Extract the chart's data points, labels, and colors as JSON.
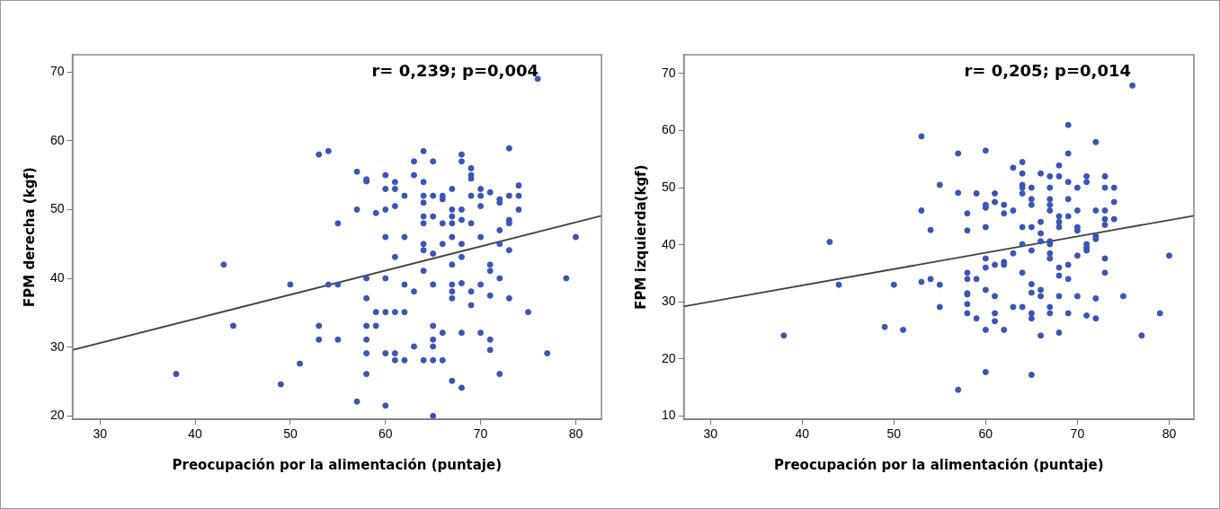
{
  "chart_data": [
    {
      "type": "scatter",
      "xlabel": "Preocupación por la alimentación (puntaje)",
      "ylabel": "FPM derecha (kgf)",
      "xlim": [
        27.1,
        82.7
      ],
      "ylim": [
        19.5,
        72.5
      ],
      "xticks": [
        30,
        40,
        50,
        60,
        70,
        80
      ],
      "yticks": [
        20,
        30,
        40,
        50,
        60,
        70
      ],
      "annotations": [
        "r= 0,239; p=0,004"
      ],
      "series": [
        {
          "marker": "circle",
          "color": "#3a55b4",
          "x": [
            53,
            54,
            57,
            58,
            58,
            57,
            55,
            43,
            50,
            54,
            55,
            58,
            58,
            44,
            53,
            53,
            55,
            58,
            58,
            58,
            58,
            51,
            38,
            49,
            57,
            59,
            59,
            59,
            60,
            60,
            60,
            60,
            60,
            60,
            60,
            60,
            61,
            61,
            61,
            61,
            61,
            61,
            61,
            62,
            62,
            62,
            62,
            62,
            63,
            63,
            63,
            63,
            64,
            64,
            64,
            64,
            64,
            64,
            64,
            64,
            64,
            64,
            65,
            65,
            65,
            65,
            65,
            65,
            65,
            65,
            65,
            65,
            66,
            66,
            66,
            66,
            66,
            66,
            67,
            67,
            67,
            67,
            67,
            67,
            67,
            67,
            67,
            67,
            68,
            68,
            68,
            68,
            68,
            68,
            68,
            68,
            68,
            69,
            69,
            69,
            69,
            69,
            69,
            69,
            70,
            70,
            70,
            70,
            70,
            70,
            71,
            71,
            71,
            71,
            71,
            71,
            72,
            72,
            72,
            72,
            72,
            72,
            73,
            73,
            73,
            73,
            73,
            73,
            74,
            74,
            74,
            75,
            76,
            77,
            79,
            80
          ],
          "values": [
            58.0,
            58.5,
            55.5,
            54.4,
            54.1,
            50.0,
            48.0,
            42.0,
            39.1,
            39.1,
            39.1,
            40.0,
            37.1,
            33.1,
            33.1,
            31.1,
            31.1,
            33.1,
            31.1,
            29.1,
            26.1,
            27.6,
            26.1,
            24.6,
            22.1,
            49.5,
            35.1,
            33.1,
            55.0,
            53.0,
            50.0,
            46.0,
            40.0,
            35.1,
            29.1,
            21.5,
            54.0,
            53.0,
            50.5,
            43.1,
            35.1,
            29.1,
            28.1,
            52.0,
            46.0,
            39.1,
            35.1,
            28.1,
            57.0,
            55.0,
            38.1,
            30.1,
            58.5,
            54.0,
            52.0,
            51.0,
            49.0,
            48.0,
            45.0,
            44.1,
            41.1,
            28.1,
            57.0,
            52.0,
            49.0,
            43.6,
            39.1,
            33.1,
            31.1,
            30.1,
            28.1,
            20.0,
            52.0,
            51.5,
            48.0,
            45.0,
            32.1,
            28.1,
            53.0,
            50.0,
            49.0,
            48.0,
            46.0,
            42.0,
            39.1,
            38.1,
            37.1,
            25.1,
            58.0,
            57.0,
            50.0,
            48.5,
            45.0,
            43.1,
            39.3,
            32.1,
            24.1,
            56.0,
            55.0,
            54.5,
            52.0,
            48.0,
            38.1,
            36.1,
            53.0,
            52.0,
            50.5,
            46.0,
            39.1,
            32.1,
            52.5,
            42.0,
            41.1,
            37.5,
            31.1,
            29.6,
            51.5,
            51.0,
            47.0,
            45.0,
            40.0,
            26.1,
            58.9,
            52.0,
            48.5,
            48.0,
            44.1,
            37.1,
            53.5,
            52.0,
            50.0,
            35.1,
            69.0,
            29.1,
            40.0,
            46.0
          ]
        },
        {
          "type": "line",
          "color": "#404040",
          "x": [
            27.1,
            82.7
          ],
          "values": [
            29.6,
            49.1
          ]
        }
      ]
    },
    {
      "type": "scatter",
      "xlabel": "Preocupación por la alimentación (puntaje)",
      "ylabel": "FPM izquierda(kgf)",
      "xlim": [
        27.1,
        82.7
      ],
      "ylim": [
        9.4,
        73.3
      ],
      "xticks": [
        30,
        40,
        50,
        60,
        70,
        80
      ],
      "yticks": [
        10,
        20,
        30,
        40,
        50,
        60,
        70
      ],
      "annotations": [
        "r= 0,205; p=0,014"
      ],
      "series": [
        {
          "marker": "circle",
          "color": "#3a55b4",
          "x": [
            38,
            43,
            44,
            49,
            50,
            51,
            53,
            53,
            53,
            54,
            54,
            55,
            55,
            55,
            57,
            57,
            57,
            58,
            58,
            58,
            58,
            58,
            58,
            58,
            58,
            59,
            59,
            59,
            60,
            60,
            60,
            60,
            60,
            60,
            60,
            60,
            60,
            61,
            61,
            61,
            61,
            61,
            61,
            62,
            62,
            62,
            62,
            62,
            63,
            63,
            63,
            63,
            64,
            64,
            64,
            64,
            64,
            64,
            64,
            64,
            64,
            65,
            65,
            65,
            65,
            65,
            65,
            65,
            65,
            65,
            65,
            66,
            66,
            66,
            66,
            66,
            66,
            66,
            67,
            67,
            67,
            67,
            67,
            67,
            67,
            67,
            67,
            67,
            67,
            68,
            68,
            68,
            68,
            68,
            68,
            68,
            68,
            68,
            69,
            69,
            69,
            69,
            69,
            69,
            69,
            69,
            70,
            70,
            70,
            70,
            70,
            70,
            71,
            71,
            71,
            71,
            71,
            71,
            72,
            72,
            72,
            72,
            72,
            72,
            73,
            73,
            73,
            73,
            73,
            73,
            73,
            74,
            74,
            74,
            75,
            76,
            77,
            79,
            80
          ],
          "values": [
            24.1,
            40.5,
            33.0,
            25.6,
            33.0,
            25.1,
            59.0,
            46.0,
            33.5,
            42.6,
            34.0,
            50.5,
            33.0,
            29.1,
            56.0,
            49.1,
            14.6,
            45.5,
            42.5,
            35.1,
            34.0,
            31.5,
            31.3,
            29.6,
            28.0,
            49.0,
            34.0,
            27.1,
            56.5,
            47.0,
            46.5,
            43.1,
            37.6,
            36.0,
            32.1,
            25.1,
            17.7,
            49.0,
            47.5,
            36.5,
            31.0,
            28.0,
            26.6,
            47.0,
            45.5,
            37.0,
            36.5,
            25.1,
            53.5,
            46.0,
            38.5,
            29.1,
            54.5,
            52.5,
            50.5,
            50.0,
            49.0,
            43.1,
            40.1,
            35.1,
            29.1,
            50.0,
            48.0,
            47.0,
            43.1,
            39.0,
            33.1,
            31.6,
            28.0,
            27.1,
            17.2,
            52.5,
            44.0,
            42.0,
            40.6,
            32.1,
            31.0,
            24.1,
            52.0,
            50.0,
            48.0,
            47.0,
            46.0,
            40.6,
            40.1,
            38.5,
            37.6,
            29.1,
            28.0,
            53.9,
            52.0,
            45.0,
            44.0,
            43.1,
            36.0,
            34.6,
            31.0,
            24.6,
            61.0,
            56.0,
            51.0,
            48.0,
            45.0,
            36.5,
            34.0,
            28.0,
            50.0,
            46.0,
            43.1,
            42.5,
            38.1,
            31.0,
            52.0,
            51.0,
            40.1,
            39.5,
            39.0,
            27.6,
            58.0,
            46.0,
            41.5,
            41.0,
            30.6,
            27.1,
            52.0,
            50.0,
            46.0,
            44.5,
            43.5,
            37.6,
            35.1,
            50.0,
            47.5,
            44.5,
            31.0,
            67.9,
            24.1,
            28.0,
            38.1
          ]
        },
        {
          "type": "line",
          "color": "#404040",
          "x": [
            27.1,
            82.7
          ],
          "values": [
            29.2,
            45.1
          ]
        }
      ]
    }
  ]
}
